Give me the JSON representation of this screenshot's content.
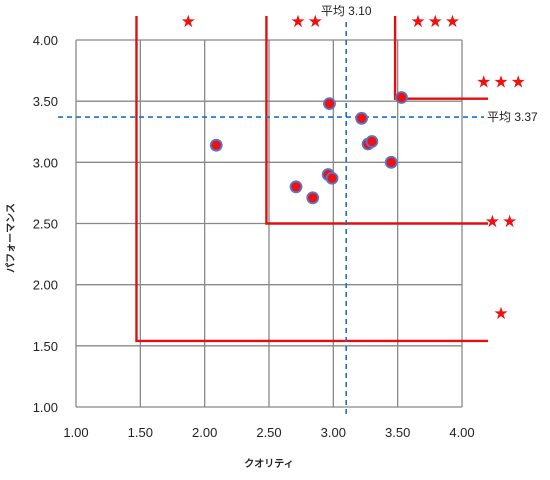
{
  "chart_data": {
    "type": "scatter",
    "xlabel": "クオリティ",
    "ylabel": "パフォーマンス",
    "xlim": [
      1.0,
      4.0
    ],
    "ylim": [
      1.0,
      4.0
    ],
    "x_ticks": [
      "1.00",
      "1.50",
      "2.00",
      "2.50",
      "3.00",
      "3.50",
      "4.00"
    ],
    "y_ticks": [
      "1.00",
      "1.50",
      "2.00",
      "2.50",
      "3.00",
      "3.50",
      "4.00"
    ],
    "grid": true,
    "points": [
      {
        "x": 2.09,
        "y": 3.14
      },
      {
        "x": 2.71,
        "y": 2.8
      },
      {
        "x": 2.84,
        "y": 2.71
      },
      {
        "x": 2.96,
        "y": 2.9
      },
      {
        "x": 2.99,
        "y": 2.87
      },
      {
        "x": 2.97,
        "y": 3.48
      },
      {
        "x": 3.22,
        "y": 3.36
      },
      {
        "x": 3.27,
        "y": 3.15
      },
      {
        "x": 3.3,
        "y": 3.17
      },
      {
        "x": 3.45,
        "y": 3.0
      },
      {
        "x": 3.53,
        "y": 3.53
      }
    ],
    "mean_x": {
      "value": 3.1,
      "label": "平均 3.10"
    },
    "mean_y": {
      "value": 3.37,
      "label": "平均 3.37"
    },
    "rating_lines": [
      {
        "x": 1.47,
        "y": 1.54
      },
      {
        "x": 2.48,
        "y": 2.5
      },
      {
        "x": 3.48,
        "y": 3.52
      }
    ],
    "ratings": [
      {
        "stars": "★",
        "zone": "top",
        "x": 1.88
      },
      {
        "stars": "★★",
        "zone": "top",
        "x": 2.8
      },
      {
        "stars": "★★★",
        "zone": "top",
        "x": 3.8
      },
      {
        "stars": "★★★",
        "zone": "right",
        "y": 3.66
      },
      {
        "stars": "★★",
        "zone": "right",
        "y": 2.52
      },
      {
        "stars": "★",
        "zone": "right",
        "y": 1.77
      }
    ],
    "colors": {
      "point_fill": "#ee1111",
      "point_stroke": "#5577cc",
      "rating_line": "#e01010",
      "mean_line": "#1f6fc0",
      "grid": "#888888"
    }
  }
}
